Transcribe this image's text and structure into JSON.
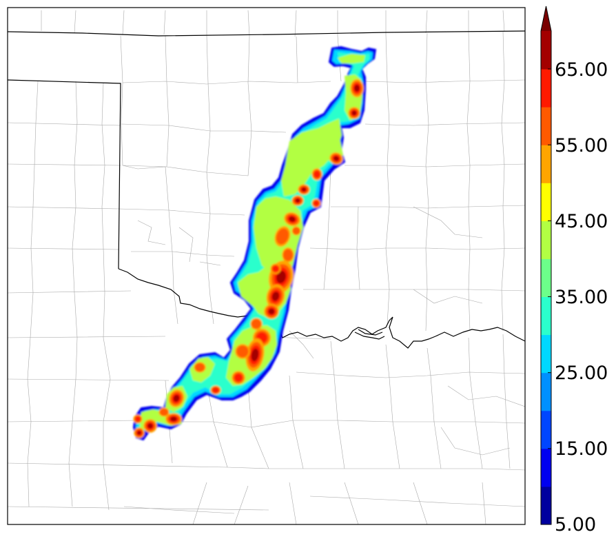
{
  "colorbar": {
    "labels": [
      "5.00",
      "15.00",
      "25.00",
      "35.00",
      "45.00",
      "55.00",
      "65.00"
    ],
    "levels": [
      5,
      10,
      15,
      20,
      25,
      30,
      35,
      40,
      45,
      50,
      55,
      60,
      65,
      70
    ],
    "colors": [
      "#00009e",
      "#0000f0",
      "#0046ff",
      "#0090ff",
      "#00d8ff",
      "#2bffcc",
      "#6cff8a",
      "#b2ff43",
      "#ffff00",
      "#ffa500",
      "#ff5a00",
      "#ff1a00",
      "#a30000"
    ],
    "extend": "max",
    "extend_color": "#7a0000"
  },
  "map": {
    "background": "#ffffff",
    "state_border_color": "#000000",
    "county_border_color": "#9a9a9a"
  }
}
